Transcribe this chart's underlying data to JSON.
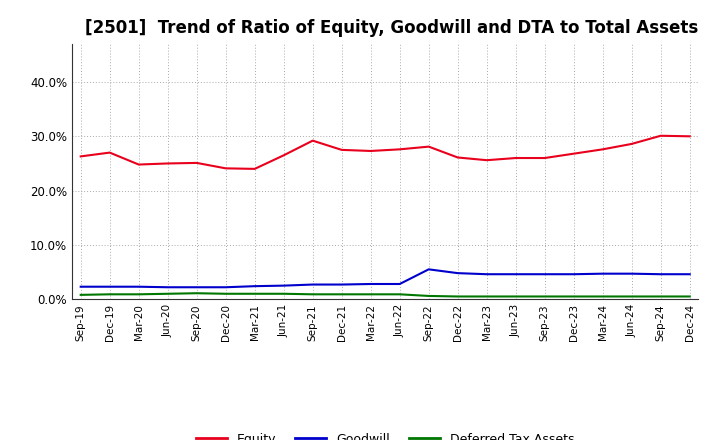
{
  "title": "[2501]  Trend of Ratio of Equity, Goodwill and DTA to Total Assets",
  "x_labels": [
    "Sep-19",
    "Dec-19",
    "Mar-20",
    "Jun-20",
    "Sep-20",
    "Dec-20",
    "Mar-21",
    "Jun-21",
    "Sep-21",
    "Dec-21",
    "Mar-22",
    "Jun-22",
    "Sep-22",
    "Dec-22",
    "Mar-23",
    "Jun-23",
    "Sep-23",
    "Dec-23",
    "Mar-24",
    "Jun-24",
    "Sep-24",
    "Dec-24"
  ],
  "equity": [
    26.3,
    27.0,
    24.8,
    25.0,
    25.1,
    24.1,
    24.0,
    26.5,
    29.2,
    27.5,
    27.3,
    27.6,
    28.1,
    26.1,
    25.6,
    26.0,
    26.0,
    26.8,
    27.6,
    28.6,
    30.1,
    30.0
  ],
  "goodwill": [
    2.3,
    2.3,
    2.3,
    2.2,
    2.2,
    2.2,
    2.4,
    2.5,
    2.7,
    2.7,
    2.8,
    2.8,
    5.5,
    4.8,
    4.6,
    4.6,
    4.6,
    4.6,
    4.7,
    4.7,
    4.6,
    4.6
  ],
  "dta": [
    0.8,
    0.9,
    0.9,
    1.0,
    1.1,
    1.0,
    1.0,
    1.0,
    0.9,
    0.9,
    0.9,
    0.9,
    0.6,
    0.5,
    0.5,
    0.5,
    0.5,
    0.5,
    0.5,
    0.5,
    0.5,
    0.5
  ],
  "equity_color": "#e8001c",
  "goodwill_color": "#0000cc",
  "dta_color": "#007700",
  "ylim": [
    0,
    47
  ],
  "yticks": [
    0,
    10,
    20,
    30,
    40
  ],
  "background_color": "#ffffff",
  "plot_bg_color": "#ffffff",
  "grid_color": "#aaaaaa",
  "title_fontsize": 12,
  "legend_labels": [
    "Equity",
    "Goodwill",
    "Deferred Tax Assets"
  ]
}
